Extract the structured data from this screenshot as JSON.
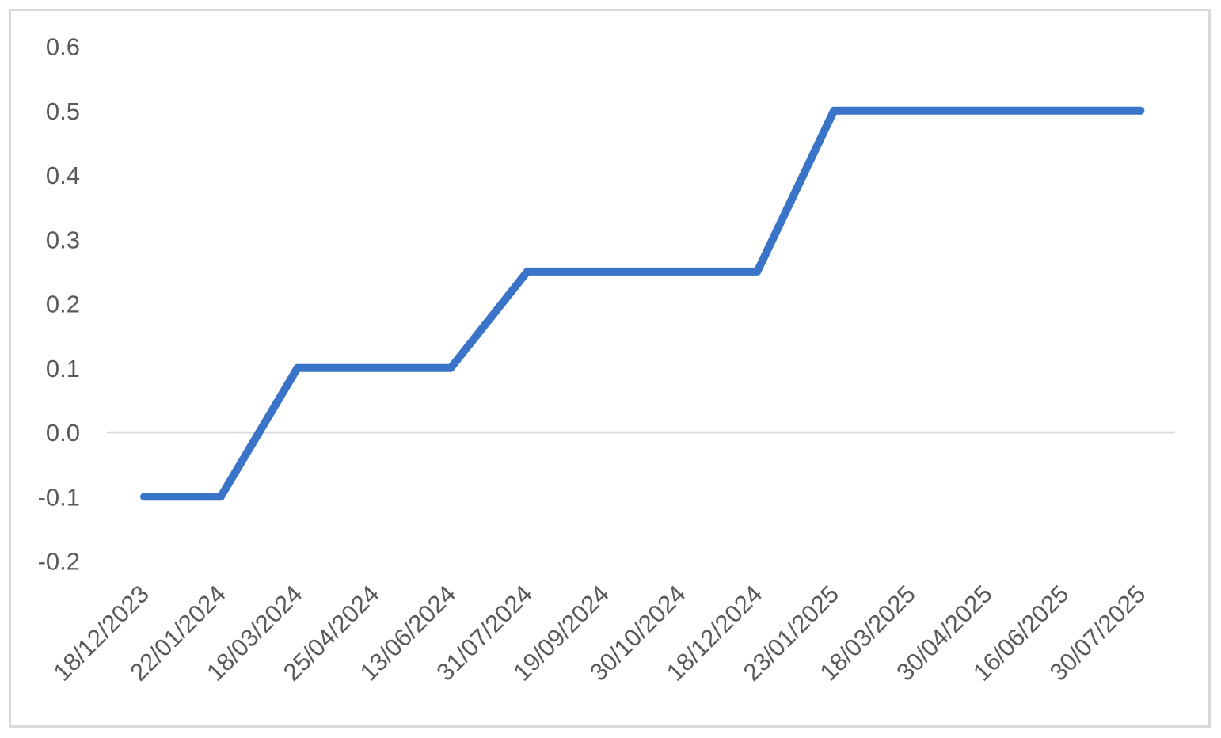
{
  "chart_data": {
    "type": "line",
    "title": "",
    "xlabel": "",
    "ylabel": "",
    "categories": [
      "18/12/2023",
      "22/01/2024",
      "18/03/2024",
      "25/04/2024",
      "13/06/2024",
      "31/07/2024",
      "19/09/2024",
      "30/10/2024",
      "18/12/2024",
      "23/01/2025",
      "18/03/2025",
      "30/04/2025",
      "16/06/2025",
      "30/07/2025"
    ],
    "series": [
      {
        "values": [
          -0.1,
          -0.1,
          0.1,
          0.1,
          0.1,
          0.25,
          0.25,
          0.25,
          0.25,
          0.5,
          0.5,
          0.5,
          0.5,
          0.5
        ]
      }
    ],
    "y_ticks": [
      "0.6",
      "0.5",
      "0.4",
      "0.3",
      "0.2",
      "0.1",
      "0.0",
      "-0.1",
      "-0.2"
    ],
    "ylim": [
      -0.2,
      0.6
    ],
    "grid": false,
    "legend": "none",
    "colors": {
      "line": "#3a74c9",
      "zero_line": "#d9d9d9",
      "tick_text": "#595959",
      "border": "#d9d9d9"
    }
  }
}
